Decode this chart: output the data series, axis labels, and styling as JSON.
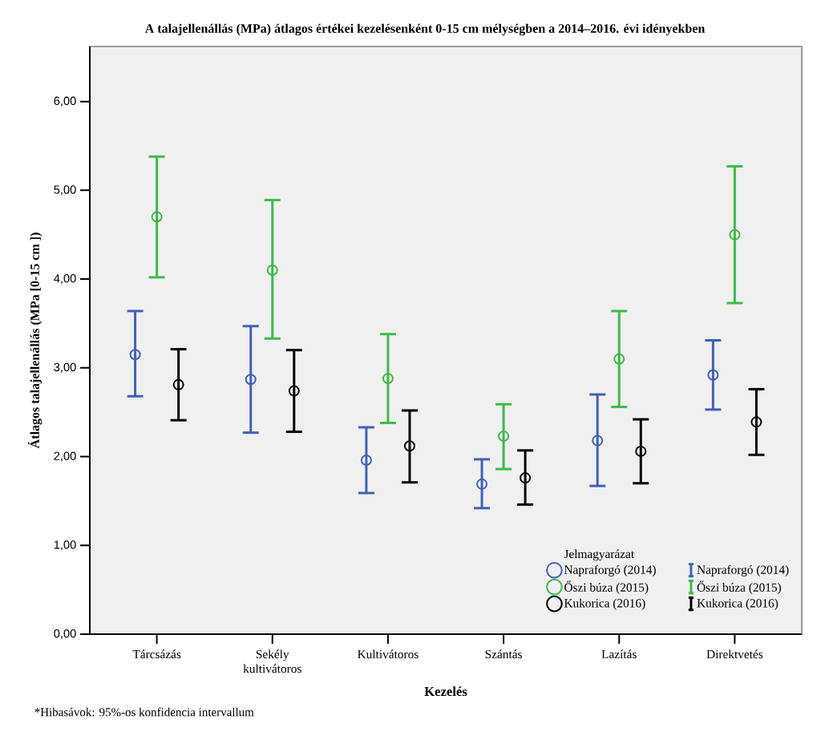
{
  "chart_data": {
    "type": "scatter",
    "title": "A talajellenállás (MPa) átlagos értékei kezelésenként 0-15 cm mélységben a 2014–2016. évi idényekben",
    "xlabel": "Kezelés",
    "ylabel": "Átlagos talajellenállás (MPa [0-15 cm ])",
    "legend_title": "Jelmagyarázat",
    "annotations": [
      "*Hibasávok: 95%-os konfidencia intervallum"
    ],
    "categories": [
      "Tárcsázás",
      "Sekély kultivátoros",
      "Kultivátoros",
      "Szántás",
      "Lazítás",
      "Direktvetés"
    ],
    "ylim": [
      0,
      6.62
    ],
    "yticks": [
      {
        "value": 0,
        "label": "0,00"
      },
      {
        "value": 1,
        "label": "1,00"
      },
      {
        "value": 2,
        "label": "2,00"
      },
      {
        "value": 3,
        "label": "3,00"
      },
      {
        "value": 4,
        "label": "4,00"
      },
      {
        "value": 5,
        "label": "5,00"
      },
      {
        "value": 6,
        "label": "6,00"
      }
    ],
    "series": [
      {
        "name": "Napraforgó (2014)",
        "color": "#4060b8",
        "values": [
          3.15,
          2.87,
          1.96,
          1.69,
          2.18,
          2.92
        ],
        "errors": [
          [
            2.68,
            3.64
          ],
          [
            2.27,
            3.47
          ],
          [
            1.59,
            2.33
          ],
          [
            1.42,
            1.97
          ],
          [
            1.67,
            2.7
          ],
          [
            2.53,
            3.31
          ]
        ]
      },
      {
        "name": "Őszi búza (2015)",
        "color": "#3dba4a",
        "values": [
          4.7,
          4.1,
          2.88,
          2.23,
          3.1,
          4.5
        ],
        "errors": [
          [
            4.02,
            5.38
          ],
          [
            3.33,
            4.89
          ],
          [
            2.38,
            3.38
          ],
          [
            1.86,
            2.59
          ],
          [
            2.56,
            3.64
          ],
          [
            3.73,
            5.27
          ]
        ]
      },
      {
        "name": "Kukorica (2016)",
        "color": "#000000",
        "values": [
          2.81,
          2.74,
          2.12,
          1.76,
          2.06,
          2.39
        ],
        "errors": [
          [
            2.41,
            3.21
          ],
          [
            2.28,
            3.2
          ],
          [
            1.71,
            2.52
          ],
          [
            1.46,
            2.07
          ],
          [
            1.7,
            2.42
          ],
          [
            2.02,
            2.76
          ]
        ]
      }
    ],
    "marker": "circle",
    "legend": "bottom right"
  }
}
